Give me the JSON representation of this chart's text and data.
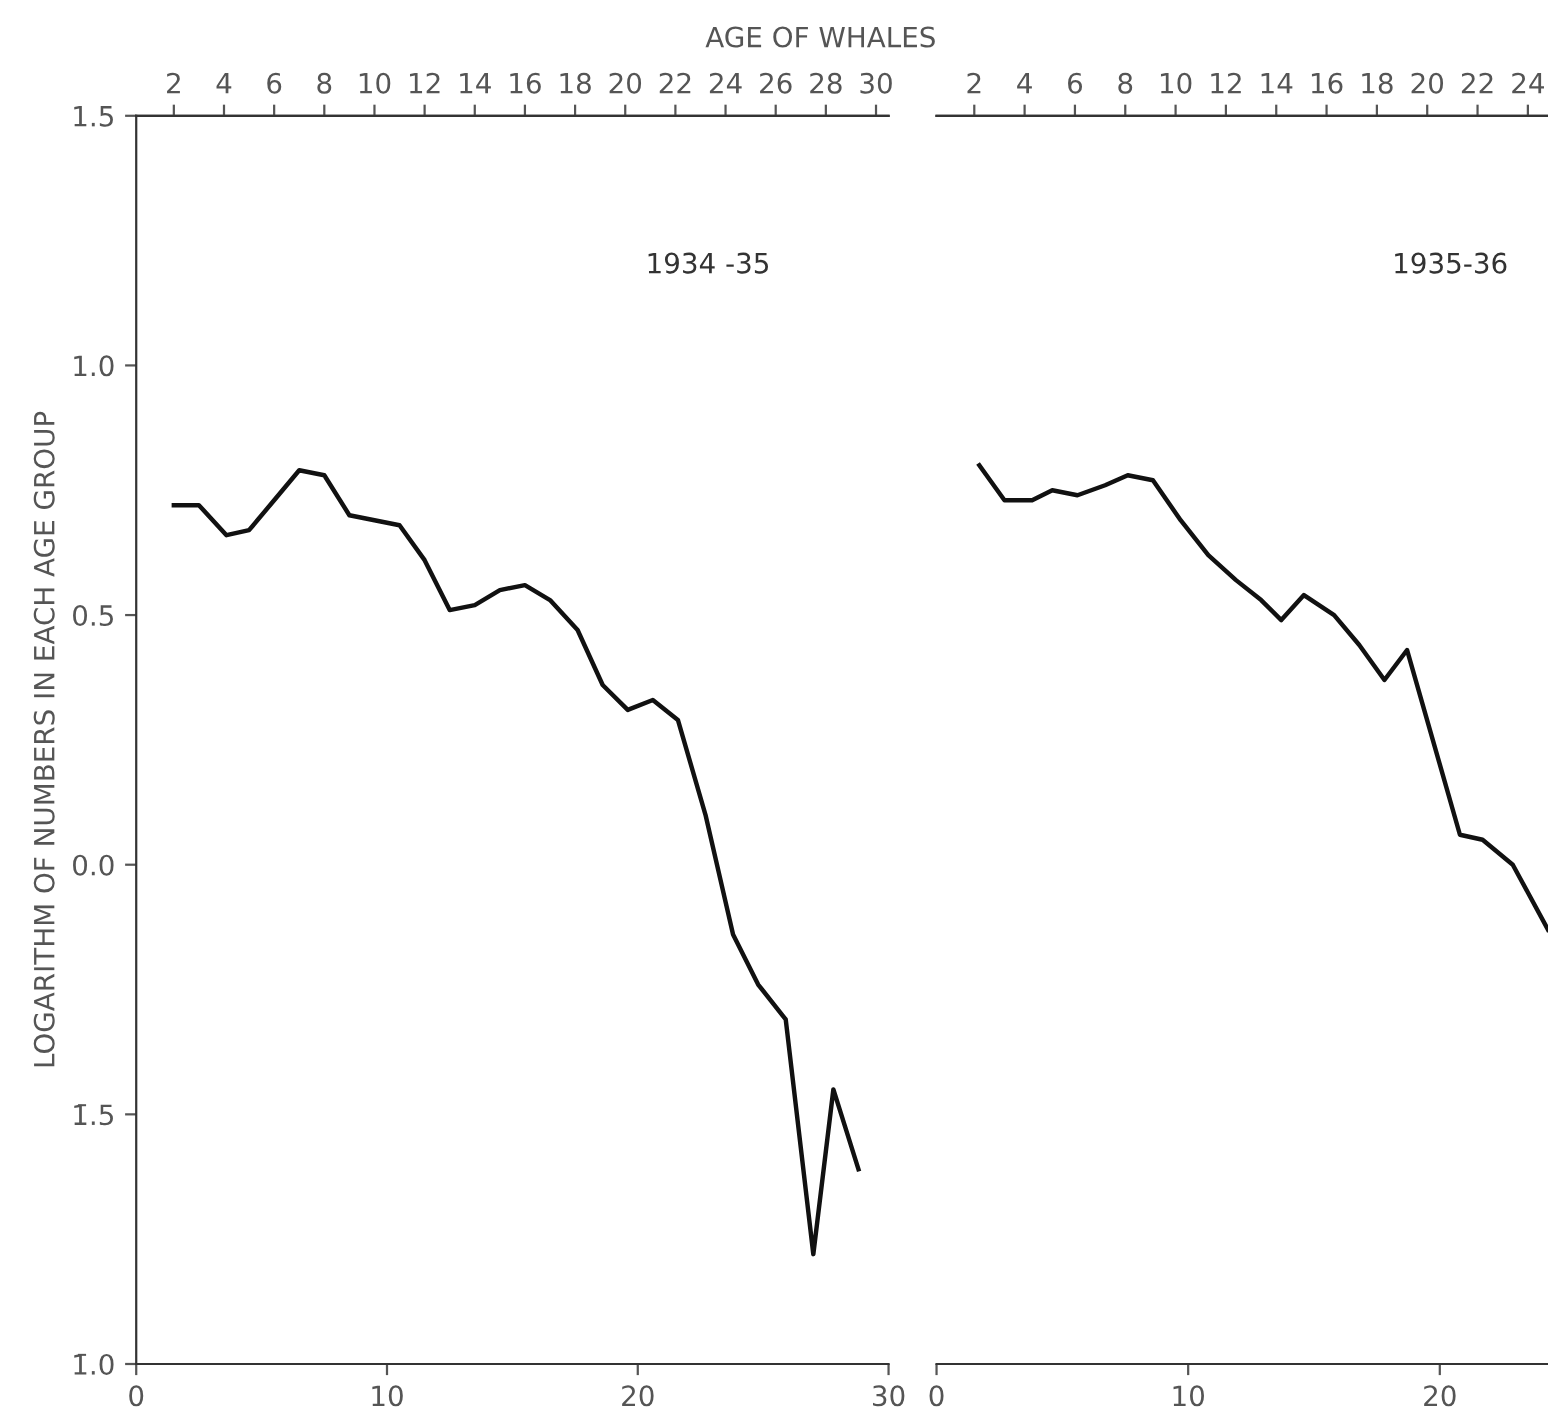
{
  "chart_data": [
    {
      "type": "line",
      "title": "1934 -35",
      "ylabel": "LOGARITHM OF NUMBERS IN EACH AGE GROUP",
      "x2label": "AGE OF WHALES",
      "series": [
        {
          "color": "#111111",
          "x": [
            1.5,
            2.5,
            3.6,
            4.5,
            5.5,
            6.5,
            7.5,
            8.5,
            9.5,
            10.5,
            11.5,
            12.5,
            13.5,
            14.5,
            15.5,
            16.5,
            17.6,
            18.6,
            19.6,
            20.6,
            21.6,
            22.7,
            23.8,
            24.8,
            25.9,
            27.0,
            27.8,
            28.8
          ],
          "values": [
            0.72,
            0.72,
            0.66,
            0.67,
            0.73,
            0.79,
            0.78,
            0.7,
            0.69,
            0.68,
            0.61,
            0.51,
            0.52,
            0.55,
            0.56,
            0.53,
            0.47,
            0.36,
            0.31,
            0.33,
            0.29,
            0.1,
            -0.14,
            -0.24,
            -0.31,
            -0.78,
            -0.45,
            -0.61
          ]
        }
      ],
      "xlim": [
        0,
        30
      ],
      "xticks": [
        0,
        10,
        20,
        30
      ],
      "x2lim": [
        0.5,
        30.5
      ],
      "x2ticks": [
        2,
        4,
        6,
        8,
        10,
        12,
        14,
        16,
        18,
        20,
        22,
        24,
        26,
        28,
        30
      ],
      "ylim": [
        -1.0,
        1.5
      ],
      "yticks": [
        1.5,
        {
          "value": 1.0,
          "label": "1.0"
        },
        0.5,
        {
          "value": 0.0,
          "label": "0.0"
        },
        {
          "value": -0.5,
          "label": "1̄.5"
        },
        {
          "value": -1.0,
          "label": "1̄.0"
        }
      ],
      "line_style": "solid",
      "grid": false,
      "legend": false
    },
    {
      "type": "line",
      "title": "1935-36",
      "series": [
        {
          "color": "#111111",
          "x": [
            1.7,
            2.7,
            3.8,
            4.6,
            5.6,
            6.7,
            7.6,
            8.6,
            9.7,
            10.8,
            11.9,
            12.9,
            13.7,
            14.6,
            15.8,
            16.8,
            17.8,
            18.7,
            20.8,
            21.7,
            22.9,
            24.3
          ],
          "values": [
            0.8,
            0.73,
            0.73,
            0.75,
            0.74,
            0.76,
            0.78,
            0.77,
            0.69,
            0.62,
            0.57,
            0.53,
            0.49,
            0.54,
            0.5,
            0.44,
            0.37,
            0.43,
            0.06,
            0.05,
            0.0,
            -0.13
          ]
        }
      ],
      "xlim": [
        0,
        24.3
      ],
      "xticks": [
        0,
        10,
        20
      ],
      "x2lim": [
        0.5,
        24.8
      ],
      "x2ticks": [
        2,
        4,
        6,
        8,
        10,
        12,
        14,
        16,
        18,
        20,
        22,
        24
      ],
      "ylim": [
        -1.0,
        1.5
      ],
      "tick_labels": "x",
      "line_style": "solid",
      "grid": false,
      "legend": false
    }
  ]
}
